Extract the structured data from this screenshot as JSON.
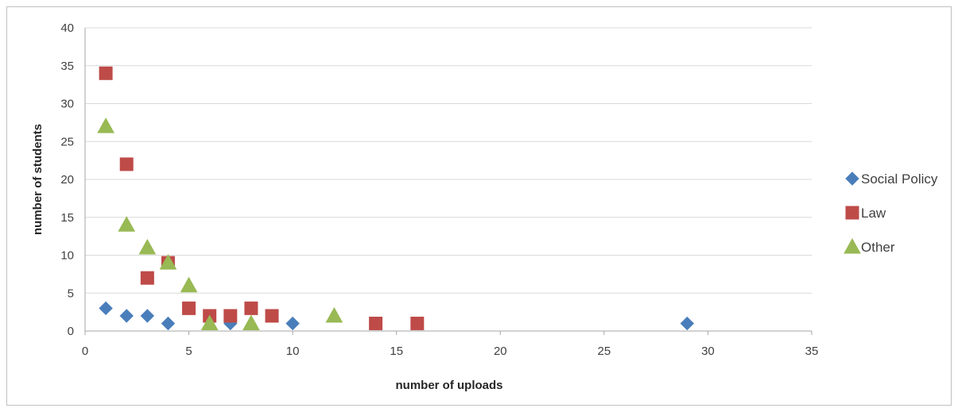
{
  "chart_data": {
    "type": "scatter",
    "title": "",
    "xlabel": "number of uploads",
    "ylabel": "number of students",
    "xlim": [
      0,
      35
    ],
    "ylim": [
      0,
      40
    ],
    "xticks": [
      0,
      5,
      10,
      15,
      20,
      25,
      30,
      35
    ],
    "yticks": [
      0,
      5,
      10,
      15,
      20,
      25,
      30,
      35,
      40
    ],
    "grid": "horizontal",
    "legend_position": "right",
    "series": [
      {
        "name": "Social Policy",
        "marker": "diamond",
        "color": "#4a7ebb",
        "points": [
          [
            1,
            3
          ],
          [
            2,
            2
          ],
          [
            3,
            2
          ],
          [
            4,
            1
          ],
          [
            7,
            1
          ],
          [
            10,
            1
          ],
          [
            29,
            1
          ]
        ]
      },
      {
        "name": "Law",
        "marker": "square",
        "color": "#be4b48",
        "points": [
          [
            1,
            34
          ],
          [
            2,
            22
          ],
          [
            3,
            7
          ],
          [
            4,
            9
          ],
          [
            5,
            3
          ],
          [
            6,
            2
          ],
          [
            7,
            2
          ],
          [
            8,
            3
          ],
          [
            9,
            2
          ],
          [
            14,
            1
          ],
          [
            16,
            1
          ]
        ]
      },
      {
        "name": "Other",
        "marker": "triangle",
        "color": "#98b954",
        "points": [
          [
            1,
            27
          ],
          [
            2,
            14
          ],
          [
            3,
            11
          ],
          [
            4,
            9
          ],
          [
            5,
            6
          ],
          [
            6,
            1
          ],
          [
            8,
            1
          ],
          [
            12,
            2
          ]
        ]
      }
    ]
  }
}
